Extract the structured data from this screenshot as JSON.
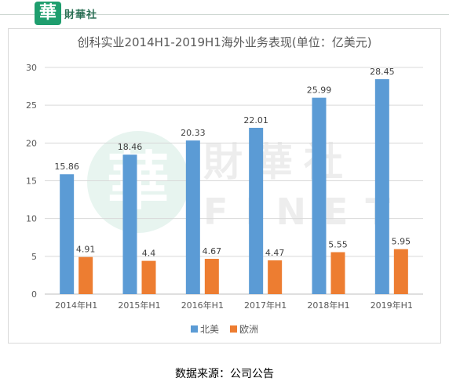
{
  "header": {
    "logo_glyph": "華",
    "brand": "財華社"
  },
  "watermark": {
    "glyph": "華",
    "cn": "財華社",
    "en": "FINET"
  },
  "chart_data": {
    "type": "bar",
    "title": "创科实业2014H1-2019H1海外业务表现(单位：亿美元)",
    "categories": [
      "2014年H1",
      "2015年H1",
      "2016年H1",
      "2017年H1",
      "2018年H1",
      "2019年H1"
    ],
    "series": [
      {
        "name": "北美",
        "color": "#5b9bd5",
        "values": [
          15.86,
          18.46,
          20.33,
          22.01,
          25.99,
          28.45
        ],
        "labels": [
          "15.86",
          "18.46",
          "20.33",
          "22.01",
          "25.99",
          "28.45"
        ]
      },
      {
        "name": "欧洲",
        "color": "#ed7d31",
        "values": [
          4.91,
          4.4,
          4.67,
          4.47,
          5.55,
          5.95
        ],
        "labels": [
          "4.91",
          "4.4",
          "4.67",
          "4.47",
          "5.55",
          "5.95"
        ]
      }
    ],
    "ylim": [
      0,
      30
    ],
    "yticks": [
      0,
      5,
      10,
      15,
      20,
      25,
      30
    ],
    "grid": true,
    "legend": "bottom"
  },
  "source": "数据来源：公司公告"
}
